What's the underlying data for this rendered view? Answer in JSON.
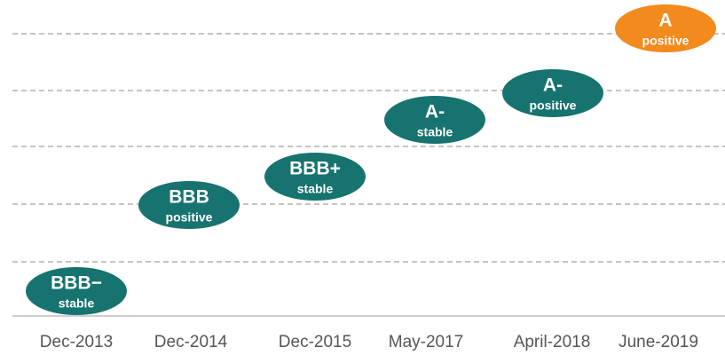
{
  "ratings": [
    {
      "date": "Dec-2013",
      "rating": "BBB−",
      "outlook": "stable"
    },
    {
      "date": "Dec-2014",
      "rating": "BBB",
      "outlook": "positive"
    },
    {
      "date": "Dec-2015",
      "rating": "BBB+",
      "outlook": "stable"
    },
    {
      "date": "May-2017",
      "rating": "A-",
      "outlook": "stable"
    },
    {
      "date": "April-2018",
      "rating": "A-",
      "outlook": "positive"
    },
    {
      "date": "June-2019",
      "rating": "A",
      "outlook": "positive"
    }
  ]
}
